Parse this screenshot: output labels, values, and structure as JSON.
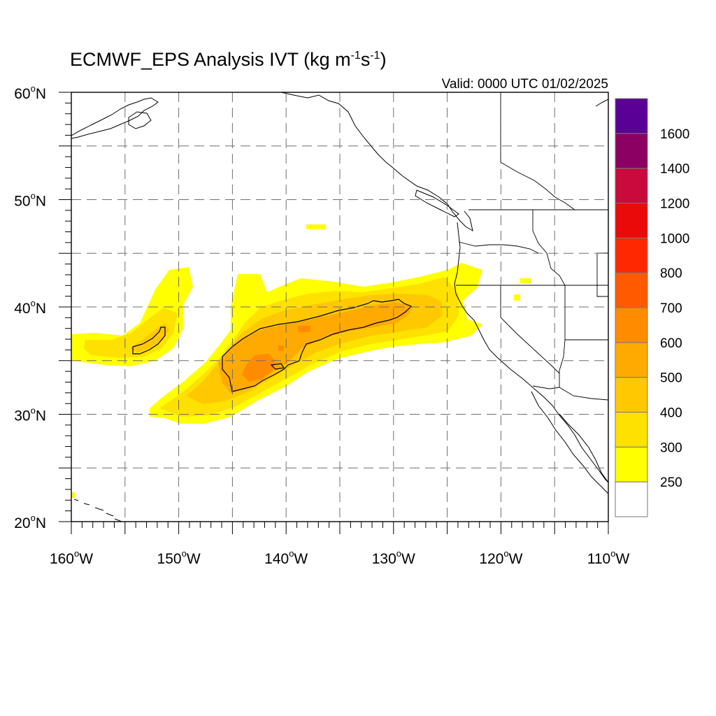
{
  "title": {
    "prefix": "ECMWF_EPS Analysis IVT (kg m",
    "exp1": "-1",
    "middle": "s",
    "exp2": "-1",
    "suffix": ")"
  },
  "valid": "Valid: 0000 UTC 01/02/2025",
  "map": {
    "extent": {
      "lon": [
        -160,
        -110
      ],
      "lat": [
        20,
        60
      ]
    },
    "grid": true,
    "lat_labels": [
      {
        "deg": "60",
        "hemi": "N",
        "value": 60
      },
      {
        "deg": "50",
        "hemi": "N",
        "value": 50
      },
      {
        "deg": "40",
        "hemi": "N",
        "value": 40
      },
      {
        "deg": "30",
        "hemi": "N",
        "value": 30
      },
      {
        "deg": "20",
        "hemi": "N",
        "value": 20
      }
    ],
    "lon_labels": [
      {
        "deg": "160",
        "hemi": "W",
        "value": -160
      },
      {
        "deg": "150",
        "hemi": "W",
        "value": -150
      },
      {
        "deg": "140",
        "hemi": "W",
        "value": -140
      },
      {
        "deg": "130",
        "hemi": "W",
        "value": -130
      },
      {
        "deg": "120",
        "hemi": "W",
        "value": -120
      },
      {
        "deg": "110",
        "hemi": "W",
        "value": -110
      }
    ]
  },
  "colorbar": {
    "labels": [
      "250",
      "300",
      "400",
      "500",
      "600",
      "700",
      "800",
      "1000",
      "1200",
      "1400",
      "1600"
    ],
    "colors": [
      "#ffffff",
      "#ffff00",
      "#ffe100",
      "#ffc800",
      "#ffaa00",
      "#ff8c00",
      "#ff5a00",
      "#ff2800",
      "#eb0a0a",
      "#c80a3c",
      "#8c0064",
      "#5a0096"
    ]
  },
  "palette": {
    "y1": "#ffff00",
    "y2": "#ffe100",
    "o1": "#ffc800",
    "o2": "#ffaa00",
    "o3": "#ff8c00"
  }
}
